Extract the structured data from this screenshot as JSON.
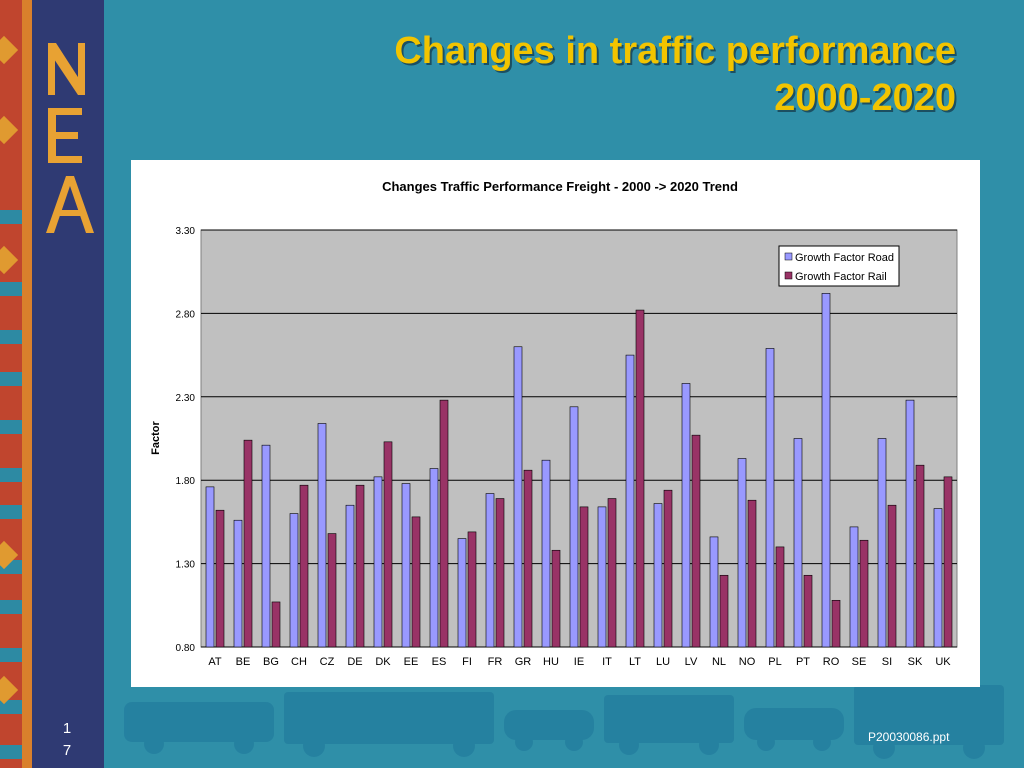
{
  "slide": {
    "title_line1": "Changes in traffic performance",
    "title_line2": "2000-2020",
    "page_digit1": "1",
    "page_digit2": "7",
    "footer_ref": "P20030086.ppt",
    "logo_letters": "NEA"
  },
  "colors": {
    "background": "#2f8fa8",
    "panel": "#2f3a73",
    "title": "#f2c400",
    "road": "#9999ff",
    "rail": "#993366",
    "plot_bg": "#c0c0c0"
  },
  "chart_data": {
    "type": "bar",
    "title": "Changes Traffic Performance Freight - 2000 -> 2020 Trend",
    "xlabel": "",
    "ylabel": "Factor",
    "ylim": [
      0.8,
      3.3
    ],
    "yticks": [
      "0.80",
      "1.30",
      "1.80",
      "2.30",
      "2.80",
      "3.30"
    ],
    "grid": true,
    "legend_position": "top-right",
    "categories": [
      "AT",
      "BE",
      "BG",
      "CH",
      "CZ",
      "DE",
      "DK",
      "EE",
      "ES",
      "FI",
      "FR",
      "GR",
      "HU",
      "IE",
      "IT",
      "LT",
      "LU",
      "LV",
      "NL",
      "NO",
      "PL",
      "PT",
      "RO",
      "SE",
      "SI",
      "SK",
      "UK"
    ],
    "series": [
      {
        "name": "Growth Factor Road",
        "color": "#9999ff",
        "values": [
          1.76,
          1.56,
          2.01,
          1.6,
          2.14,
          1.65,
          1.82,
          1.78,
          1.87,
          1.45,
          1.72,
          2.6,
          1.92,
          2.24,
          1.64,
          2.55,
          1.66,
          2.38,
          1.46,
          1.93,
          2.59,
          2.05,
          2.92,
          1.52,
          2.05,
          2.28,
          1.63
        ]
      },
      {
        "name": "Growth Factor Rail",
        "color": "#993366",
        "values": [
          1.62,
          2.04,
          1.07,
          1.77,
          1.48,
          1.77,
          2.03,
          1.58,
          2.28,
          1.49,
          1.69,
          1.86,
          1.38,
          1.64,
          1.69,
          2.82,
          1.74,
          2.07,
          1.23,
          1.68,
          1.4,
          1.23,
          1.08,
          1.44,
          1.65,
          1.89,
          1.82
        ]
      }
    ]
  }
}
